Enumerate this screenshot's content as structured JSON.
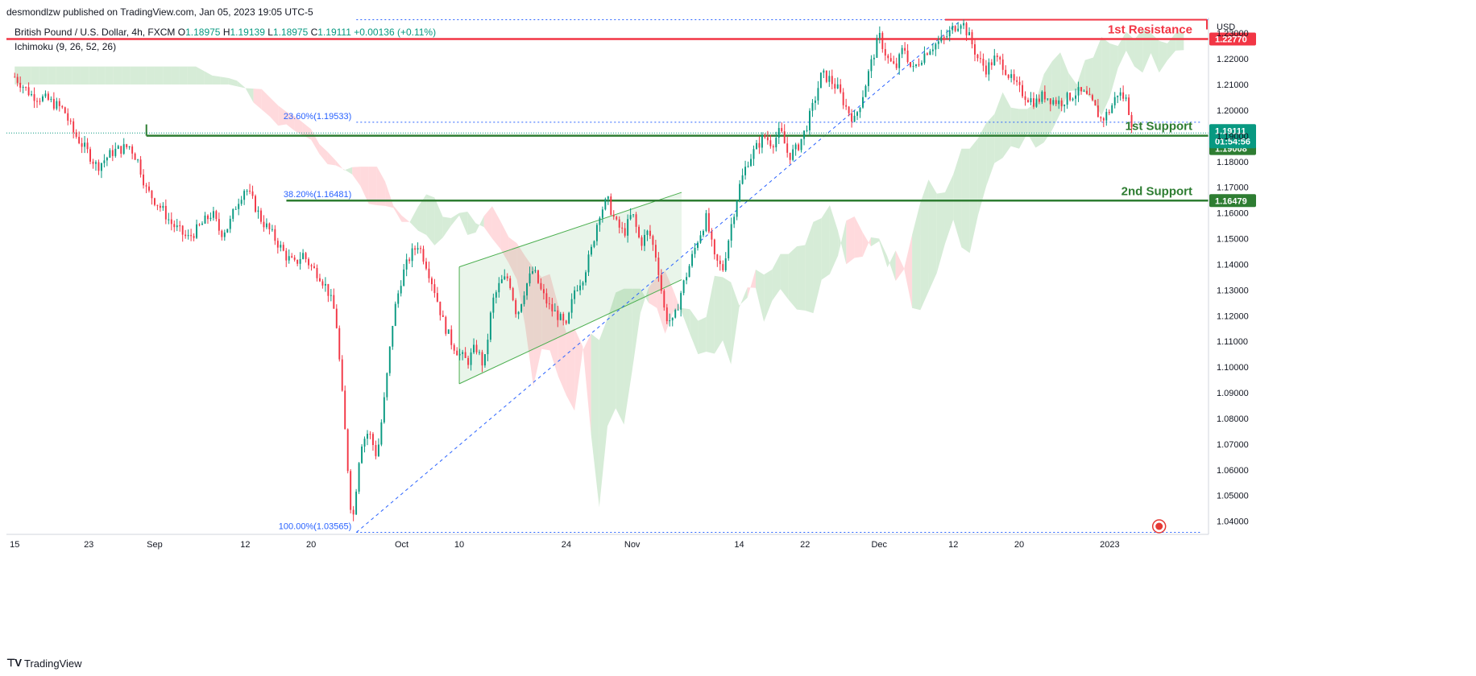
{
  "header": {
    "publisher": "desmondlzw published on TradingView.com, Jan 05, 2023 19:05 UTC-5",
    "symbol": "British Pound / U.S. Dollar, 4h, FXCM",
    "ohlc": [
      {
        "key": "O",
        "value": "1.18975"
      },
      {
        "key": "H",
        "value": "1.19139"
      },
      {
        "key": "L",
        "value": "1.18975"
      },
      {
        "key": "C",
        "value": "1.19111"
      }
    ],
    "change": "+0.00136 (+0.11%)",
    "indicator": "Ichimoku (9, 26, 52, 26)"
  },
  "footer": {
    "brand": "TradingView"
  },
  "colors": {
    "up": "#089981",
    "down": "#f23645",
    "resistance": "#f23645",
    "support": "#2e7d32",
    "fib": "#2962ff",
    "cloud_green": "#c8e6c9",
    "cloud_red": "#ffcdd2",
    "channel": "#4caf50"
  },
  "chart_data": {
    "type": "candlestick",
    "currency": "USD",
    "yaxis": {
      "ylim": [
        1.0355,
        1.236
      ],
      "ticks": [
        "1.04000",
        "1.05000",
        "1.06000",
        "1.07000",
        "1.08000",
        "1.09000",
        "1.10000",
        "1.11000",
        "1.12000",
        "1.13000",
        "1.14000",
        "1.15000",
        "1.16000",
        "1.17000",
        "1.18000",
        "1.19000",
        "1.20000",
        "1.21000",
        "1.22000",
        "1.23000"
      ]
    },
    "xaxis": {
      "ticks": [
        {
          "label": "15",
          "x": 0
        },
        {
          "label": "23",
          "x": 9
        },
        {
          "label": "Sep",
          "x": 17
        },
        {
          "label": "12",
          "x": 28
        },
        {
          "label": "20",
          "x": 36
        },
        {
          "label": "Oct",
          "x": 47
        },
        {
          "label": "10",
          "x": 54
        },
        {
          "label": "24",
          "x": 67
        },
        {
          "label": "Nov",
          "x": 75
        },
        {
          "label": "14",
          "x": 88
        },
        {
          "label": "22",
          "x": 96
        },
        {
          "label": "Dec",
          "x": 105
        },
        {
          "label": "12",
          "x": 114
        },
        {
          "label": "20",
          "x": 122
        },
        {
          "label": "2023",
          "x": 133
        }
      ],
      "xlim": [
        -1,
        145
      ]
    },
    "price_path": [
      [
        0,
        1.213
      ],
      [
        2,
        1.206
      ],
      [
        4,
        1.204
      ],
      [
        6,
        1.2
      ],
      [
        7,
        1.192
      ],
      [
        9,
        1.183
      ],
      [
        10,
        1.178
      ],
      [
        12,
        1.184
      ],
      [
        14,
        1.186
      ],
      [
        15,
        1.18
      ],
      [
        16,
        1.169
      ],
      [
        18,
        1.161
      ],
      [
        19,
        1.156
      ],
      [
        21,
        1.15
      ],
      [
        22,
        1.153
      ],
      [
        24,
        1.16
      ],
      [
        25,
        1.152
      ],
      [
        26,
        1.155
      ],
      [
        27,
        1.164
      ],
      [
        28,
        1.17
      ],
      [
        29,
        1.164
      ],
      [
        30,
        1.157
      ],
      [
        31,
        1.153
      ],
      [
        32,
        1.148
      ],
      [
        33,
        1.143
      ],
      [
        34,
        1.14
      ],
      [
        35,
        1.144
      ],
      [
        36,
        1.139
      ],
      [
        37,
        1.136
      ],
      [
        38,
        1.13
      ],
      [
        39,
        1.12
      ],
      [
        40,
        1.08
      ],
      [
        41,
        1.038
      ],
      [
        42,
        1.07
      ],
      [
        43,
        1.075
      ],
      [
        44,
        1.065
      ],
      [
        45,
        1.09
      ],
      [
        46,
        1.12
      ],
      [
        47,
        1.135
      ],
      [
        48,
        1.143
      ],
      [
        49,
        1.148
      ],
      [
        50,
        1.14
      ],
      [
        51,
        1.13
      ],
      [
        52,
        1.118
      ],
      [
        53,
        1.11
      ],
      [
        54,
        1.105
      ],
      [
        55,
        1.102
      ],
      [
        56,
        1.108
      ],
      [
        57,
        1.1
      ],
      [
        58,
        1.125
      ],
      [
        59,
        1.133
      ],
      [
        60,
        1.135
      ],
      [
        61,
        1.12
      ],
      [
        62,
        1.131
      ],
      [
        63,
        1.138
      ],
      [
        64,
        1.129
      ],
      [
        65,
        1.123
      ],
      [
        66,
        1.12
      ],
      [
        67,
        1.115
      ],
      [
        68,
        1.13
      ],
      [
        69,
        1.135
      ],
      [
        70,
        1.145
      ],
      [
        71,
        1.16
      ],
      [
        72,
        1.165
      ],
      [
        73,
        1.156
      ],
      [
        74,
        1.152
      ],
      [
        75,
        1.16
      ],
      [
        76,
        1.148
      ],
      [
        77,
        1.153
      ],
      [
        78,
        1.142
      ],
      [
        79,
        1.12
      ],
      [
        80,
        1.117
      ],
      [
        81,
        1.13
      ],
      [
        82,
        1.14
      ],
      [
        83,
        1.15
      ],
      [
        84,
        1.158
      ],
      [
        85,
        1.142
      ],
      [
        86,
        1.138
      ],
      [
        87,
        1.155
      ],
      [
        88,
        1.17
      ],
      [
        89,
        1.18
      ],
      [
        90,
        1.185
      ],
      [
        91,
        1.19
      ],
      [
        92,
        1.187
      ],
      [
        93,
        1.192
      ],
      [
        94,
        1.182
      ],
      [
        95,
        1.185
      ],
      [
        96,
        1.192
      ],
      [
        97,
        1.202
      ],
      [
        98,
        1.214
      ],
      [
        99,
        1.212
      ],
      [
        100,
        1.208
      ],
      [
        101,
        1.201
      ],
      [
        102,
        1.196
      ],
      [
        103,
        1.206
      ],
      [
        104,
        1.218
      ],
      [
        105,
        1.229
      ],
      [
        106,
        1.22
      ],
      [
        107,
        1.216
      ],
      [
        108,
        1.225
      ],
      [
        109,
        1.215
      ],
      [
        110,
        1.22
      ],
      [
        111,
        1.224
      ],
      [
        112,
        1.226
      ],
      [
        113,
        1.228
      ],
      [
        114,
        1.232
      ],
      [
        115,
        1.235
      ],
      [
        116,
        1.228
      ],
      [
        117,
        1.22
      ],
      [
        118,
        1.216
      ],
      [
        119,
        1.22
      ],
      [
        120,
        1.218
      ],
      [
        121,
        1.212
      ],
      [
        122,
        1.208
      ],
      [
        123,
        1.205
      ],
      [
        124,
        1.203
      ],
      [
        125,
        1.206
      ],
      [
        126,
        1.204
      ],
      [
        127,
        1.203
      ],
      [
        128,
        1.205
      ],
      [
        129,
        1.207
      ],
      [
        130,
        1.206
      ],
      [
        131,
        1.202
      ],
      [
        132,
        1.196
      ],
      [
        133,
        1.2
      ],
      [
        134,
        1.207
      ],
      [
        135,
        1.204
      ],
      [
        136,
        1.191
      ]
    ],
    "levels": [
      {
        "name": "1st Resistance",
        "value": 1.2277,
        "tag": "1.22770",
        "color": "#f23645"
      },
      {
        "name": "1st Support",
        "value": 1.19008,
        "tag": "1.19008",
        "color": "#2e7d32"
      },
      {
        "name": "2nd Support",
        "value": 1.16479,
        "tag": "1.16479",
        "color": "#2e7d32"
      }
    ],
    "top_resistance": {
      "value": 1.2352,
      "x_start": 113
    },
    "current_price": {
      "value": "1.19111",
      "countdown": "01:54:56"
    },
    "fibonacci": [
      {
        "label": "23.60%(1.19533)",
        "value": 1.19533
      },
      {
        "label": "38.20%(1.16481)",
        "value": 1.16481
      },
      {
        "label": "100.00%(1.03565)",
        "value": 1.03565
      }
    ],
    "fib_trendline": {
      "from": [
        41.5,
        1.03565
      ],
      "to": [
        115,
        1.2352
      ]
    },
    "channel": {
      "upper": [
        [
          54,
          1.139
        ],
        [
          81,
          1.168
        ]
      ],
      "lower": [
        [
          54,
          1.0935
        ],
        [
          81,
          1.134
        ]
      ]
    },
    "grid": false
  }
}
